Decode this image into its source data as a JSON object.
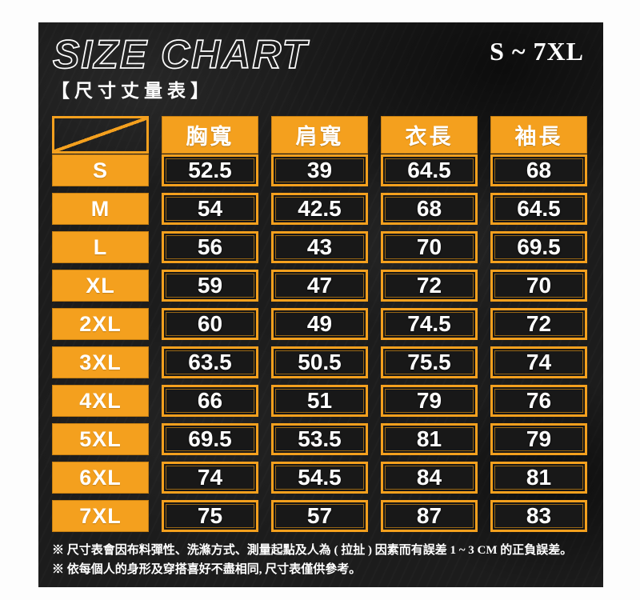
{
  "header": {
    "title": "SIZE CHART",
    "subtitle": "【尺寸丈量表】",
    "size_range": "S ~ 7XL"
  },
  "chart_data": {
    "type": "table",
    "title": "SIZE CHART 尺寸丈量表",
    "columns": [
      "胸寬",
      "肩寬",
      "衣長",
      "袖長"
    ],
    "rows": [
      {
        "size": "S",
        "values": [
          "52.5",
          "39",
          "64.5",
          "68"
        ]
      },
      {
        "size": "M",
        "values": [
          "54",
          "42.5",
          "68",
          "64.5"
        ]
      },
      {
        "size": "L",
        "values": [
          "56",
          "43",
          "70",
          "69.5"
        ]
      },
      {
        "size": "XL",
        "values": [
          "59",
          "47",
          "72",
          "70"
        ]
      },
      {
        "size": "2XL",
        "values": [
          "60",
          "49",
          "74.5",
          "72"
        ]
      },
      {
        "size": "3XL",
        "values": [
          "63.5",
          "50.5",
          "75.5",
          "74"
        ]
      },
      {
        "size": "4XL",
        "values": [
          "66",
          "51",
          "79",
          "76"
        ]
      },
      {
        "size": "5XL",
        "values": [
          "69.5",
          "53.5",
          "81",
          "79"
        ]
      },
      {
        "size": "6XL",
        "values": [
          "74",
          "54.5",
          "84",
          "81"
        ]
      },
      {
        "size": "7XL",
        "values": [
          "75",
          "57",
          "87",
          "83"
        ]
      }
    ]
  },
  "notes": [
    "※ 尺寸表會因布料彈性、洗滌方式、測量起點及人為 ( 拉扯 ) 因素而有誤差 1 ~ 3 CM 的正負誤差。",
    "※ 依每個人的身形及穿搭喜好不盡相同, 尺寸表僅供參考。"
  ],
  "colors": {
    "accent_orange": "#f4a01e",
    "panel_background": "#1c1c1c",
    "text_white": "#ffffff"
  }
}
